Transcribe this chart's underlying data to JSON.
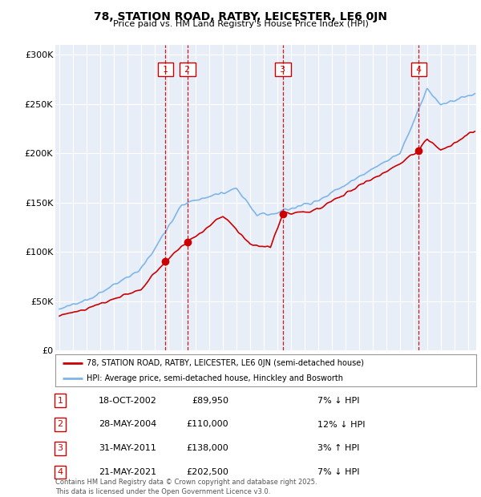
{
  "title": "78, STATION ROAD, RATBY, LEICESTER, LE6 0JN",
  "subtitle": "Price paid vs. HM Land Registry's House Price Index (HPI)",
  "legend_line1": "78, STATION ROAD, RATBY, LEICESTER, LE6 0JN (semi-detached house)",
  "legend_line2": "HPI: Average price, semi-detached house, Hinckley and Bosworth",
  "footer": "Contains HM Land Registry data © Crown copyright and database right 2025.\nThis data is licensed under the Open Government Licence v3.0.",
  "sales": [
    {
      "num": 1,
      "date": "18-OCT-2002",
      "price": 89950,
      "pct": "7%",
      "dir": "↓",
      "x_year": 2002.79
    },
    {
      "num": 2,
      "date": "28-MAY-2004",
      "price": 110000,
      "pct": "12%",
      "dir": "↓",
      "x_year": 2004.41
    },
    {
      "num": 3,
      "date": "31-MAY-2011",
      "price": 138000,
      "pct": "3%",
      "dir": "↑",
      "x_year": 2011.41
    },
    {
      "num": 4,
      "date": "21-MAY-2021",
      "price": 202500,
      "pct": "7%",
      "dir": "↓",
      "x_year": 2021.38
    }
  ],
  "sale_prices": [
    89950,
    110000,
    138000,
    202500
  ],
  "sale_years": [
    2002.79,
    2004.41,
    2011.41,
    2021.38
  ],
  "hpi_color": "#7EB6E8",
  "price_color": "#CC0000",
  "sale_dot_color": "#CC0000",
  "bg_color": "#E8EEF8",
  "grid_color": "#FFFFFF",
  "dashed_color": "#CC0000",
  "box_color": "#CC0000",
  "ylim": [
    0,
    310000
  ],
  "xlim_start": 1994.7,
  "xlim_end": 2025.6
}
